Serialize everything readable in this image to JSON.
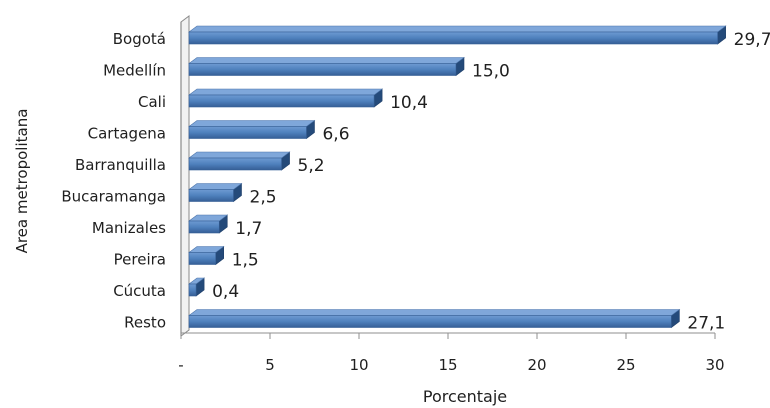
{
  "chart_data": {
    "type": "bar",
    "orientation": "horizontal",
    "categories": [
      "Bogotá",
      "Medellín",
      "Cali",
      "Cartagena",
      "Barranquilla",
      "Bucaramanga",
      "Manizales",
      "Pereira",
      "Cúcuta",
      "Resto"
    ],
    "values": [
      29.7,
      15.0,
      10.4,
      6.6,
      5.2,
      2.5,
      1.7,
      1.5,
      0.4,
      27.1
    ],
    "data_labels": [
      "29,7",
      "15,0",
      "10,4",
      "6,6",
      "5,2",
      "2,5",
      "1,7",
      "1,5",
      "0,4",
      "27,1"
    ],
    "xlabel": "Porcentaje",
    "ylabel": "Area metropolitana",
    "xlim": [
      0,
      30
    ],
    "xticks": [
      0,
      5,
      10,
      15,
      20,
      25,
      30
    ],
    "xtick_labels": [
      "-",
      "5",
      "10",
      "15",
      "20",
      "25",
      "30"
    ],
    "grid": false,
    "bar_color": "#4F81BD",
    "bar_top_color": "#7FA7DA",
    "bar_side_color": "#244A7A",
    "wall_color": "#8A8A8A"
  }
}
